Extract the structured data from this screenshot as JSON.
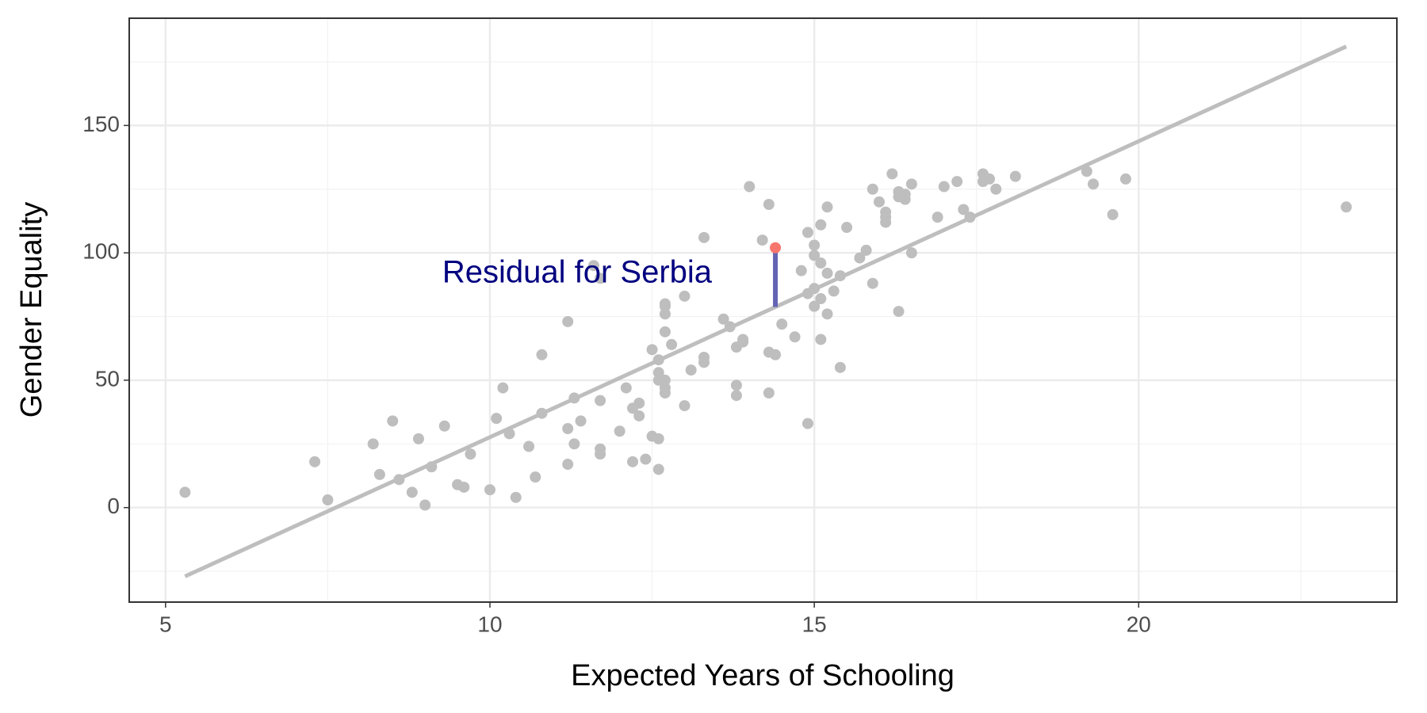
{
  "chart_data": {
    "type": "scatter",
    "x_label": "Expected Years of Schooling",
    "y_label": "Gender Equality",
    "xlim": [
      4.44,
      23.98
    ],
    "ylim": [
      -37.1,
      192.1
    ],
    "xticks": [
      5,
      10,
      15,
      20
    ],
    "yticks": [
      0,
      50,
      100,
      150
    ],
    "x_minor_ticks": [
      7.5,
      12.5,
      17.5,
      22.5
    ],
    "y_minor_ticks": [
      -25,
      25,
      75,
      125,
      175
    ],
    "grid": true,
    "series": [
      {
        "color": "#bebebe",
        "x": [
          5.3,
          7.3,
          7.5,
          8.2,
          8.3,
          8.5,
          8.6,
          8.8,
          8.9,
          9.0,
          9.1,
          9.3,
          9.5,
          9.6,
          9.7,
          10.0,
          10.1,
          10.2,
          10.3,
          10.4,
          10.6,
          10.7,
          10.8,
          10.8,
          11.2,
          11.2,
          11.2,
          11.3,
          11.3,
          11.4,
          11.6,
          11.7,
          11.7,
          11.7,
          11.7,
          12.0,
          12.1,
          12.2,
          12.2,
          12.3,
          12.3,
          12.4,
          12.5,
          12.5,
          12.6,
          12.6,
          12.6,
          12.6,
          12.6,
          12.7,
          12.7,
          12.7,
          12.7,
          12.7,
          12.7,
          12.7,
          12.8,
          13.0,
          13.0,
          13.1,
          13.3,
          13.3,
          13.3,
          13.6,
          13.7,
          13.8,
          13.8,
          13.8,
          13.9,
          13.9,
          14.0,
          14.2,
          14.3,
          14.3,
          14.3,
          14.4,
          14.5,
          14.7,
          14.8,
          14.9,
          14.9,
          14.9,
          15.0,
          15.0,
          15.0,
          15.0,
          15.1,
          15.1,
          15.1,
          15.1,
          15.2,
          15.2,
          15.2,
          15.3,
          15.4,
          15.4,
          15.5,
          15.7,
          15.8,
          15.9,
          15.9,
          16.0,
          16.1,
          16.1,
          16.1,
          16.2,
          16.3,
          16.3,
          16.3,
          16.4,
          16.4,
          16.5,
          16.5,
          16.9,
          17.0,
          17.2,
          17.3,
          17.4,
          17.6,
          17.6,
          17.7,
          17.8,
          18.1,
          19.2,
          19.3,
          19.6,
          19.8,
          23.2
        ],
        "values": [
          6,
          18,
          3,
          25,
          13,
          34,
          11,
          6,
          27,
          1,
          16,
          32,
          9,
          8,
          21,
          7,
          35,
          47,
          29,
          4,
          24,
          12,
          37,
          60,
          73,
          31,
          17,
          25,
          43,
          34,
          95,
          90,
          42,
          23,
          21,
          30,
          47,
          39,
          18,
          41,
          36,
          19,
          62,
          28,
          27,
          58,
          53,
          50,
          15,
          80,
          79,
          76,
          69,
          50,
          47,
          45,
          64,
          83,
          40,
          54,
          59,
          57,
          106,
          74,
          71,
          63,
          48,
          44,
          66,
          65,
          126,
          105,
          119,
          61,
          45,
          60,
          72,
          67,
          93,
          108,
          84,
          33,
          103,
          99,
          86,
          79,
          111,
          96,
          82,
          66,
          118,
          92,
          76,
          85,
          91,
          55,
          110,
          98,
          101,
          88,
          125,
          120,
          116,
          114,
          112,
          131,
          77,
          124,
          122,
          121,
          123,
          100,
          127,
          114,
          126,
          128,
          117,
          114,
          131,
          128,
          129,
          125,
          130,
          132,
          127,
          115,
          129,
          118
        ]
      },
      {
        "color": "#f8766d",
        "x": [
          14.4
        ],
        "values": [
          102
        ]
      }
    ],
    "trend": {
      "color": "#bebebe",
      "x": [
        5.3,
        23.2
      ],
      "values": [
        -27,
        181
      ]
    },
    "residual_color": "#6464b4",
    "annotation": {
      "text": "Residual for Serbia",
      "color": "#000080"
    }
  }
}
